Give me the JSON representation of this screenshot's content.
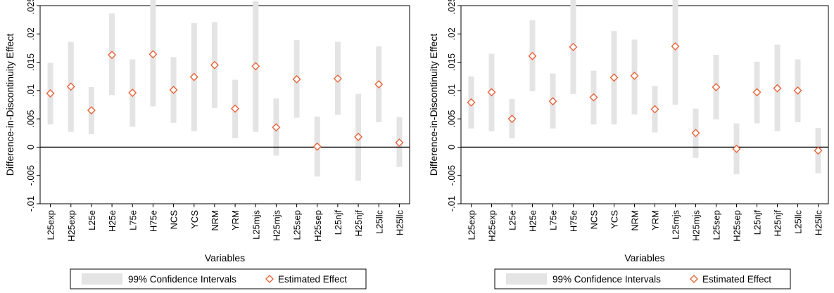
{
  "colors": {
    "ci_fill": "#e4e4e4",
    "marker": "#e8643a",
    "zero_line": "#000000",
    "axis": "#000000"
  },
  "legend": {
    "ci_label": "99% Confidence Intervals",
    "effect_label": "Estimated Effect"
  },
  "chart_data": [
    {
      "type": "scatter",
      "ylabel": "Difference-in-Discontinuity Effect",
      "xlabel": "Variables",
      "ylim": [
        -0.01,
        0.025
      ],
      "yticks": [
        -0.01,
        -0.005,
        0,
        0.005,
        0.01,
        0.015,
        0.02,
        0.025
      ],
      "ytick_labels": [
        "-.01",
        "-.005",
        "0",
        ".005",
        ".01",
        ".015",
        ".02",
        ".025"
      ],
      "categories": [
        "L25exp",
        "H25exp",
        "L25e",
        "H25e",
        "L75e",
        "H75e",
        "NCS",
        "YCS",
        "NRM",
        "YRM",
        "L25mjs",
        "H25mjs",
        "L25sep",
        "H25sep",
        "L25njf",
        "H25njf",
        "L25llc",
        "H25llc"
      ],
      "estimate": [
        0.0095,
        0.0107,
        0.0065,
        0.0163,
        0.0096,
        0.0164,
        0.0101,
        0.0124,
        0.0145,
        0.0068,
        0.0143,
        0.0035,
        0.012,
        0.0001,
        0.0121,
        0.0018,
        0.0111,
        0.0008
      ],
      "ci_low": [
        0.004,
        0.0027,
        0.0023,
        0.0092,
        0.0036,
        0.0072,
        0.0043,
        0.0028,
        0.0069,
        0.0016,
        0.0027,
        -0.0015,
        0.0052,
        -0.0052,
        0.0057,
        -0.0059,
        0.0044,
        -0.0035
      ],
      "ci_high": [
        0.0149,
        0.0186,
        0.0106,
        0.0236,
        0.0155,
        0.026,
        0.0159,
        0.0219,
        0.0221,
        0.0119,
        0.0258,
        0.0086,
        0.0189,
        0.0054,
        0.0186,
        0.0094,
        0.0178,
        0.0053
      ],
      "legend_position": "bottom"
    },
    {
      "type": "scatter",
      "ylabel": "Difference-in-Discontinuity Effect",
      "xlabel": "Variables",
      "ylim": [
        -0.01,
        0.025
      ],
      "yticks": [
        -0.01,
        -0.005,
        0,
        0.005,
        0.01,
        0.015,
        0.02,
        0.025
      ],
      "ytick_labels": [
        "-.01",
        "-.005",
        "0",
        ".005",
        ".01",
        ".015",
        ".02",
        ".025"
      ],
      "categories": [
        "L25exp",
        "H25exp",
        "L25e",
        "H25e",
        "L75e",
        "H75e",
        "NCS",
        "YCS",
        "NRM",
        "YRM",
        "L25mjs",
        "H25mjs",
        "L25sep",
        "H25sep",
        "L25njf",
        "H25njf",
        "L25llc",
        "H25llc"
      ],
      "estimate": [
        0.0079,
        0.0097,
        0.005,
        0.0161,
        0.0081,
        0.0177,
        0.0088,
        0.0123,
        0.0126,
        0.0067,
        0.0178,
        0.0025,
        0.0106,
        -0.0003,
        0.0097,
        0.0104,
        0.01,
        -0.0006
      ],
      "ci_low": [
        0.0033,
        0.0028,
        0.0016,
        0.0099,
        0.0033,
        0.0094,
        0.004,
        0.004,
        0.0058,
        0.0026,
        0.0075,
        -0.0019,
        0.0049,
        -0.0048,
        0.0042,
        0.0028,
        0.0044,
        -0.0046
      ],
      "ci_high": [
        0.0125,
        0.0165,
        0.0085,
        0.0224,
        0.013,
        0.026,
        0.0135,
        0.0205,
        0.019,
        0.0108,
        0.0281,
        0.0068,
        0.0163,
        0.0042,
        0.0151,
        0.0181,
        0.0155,
        0.0034
      ],
      "legend_position": "bottom"
    }
  ]
}
